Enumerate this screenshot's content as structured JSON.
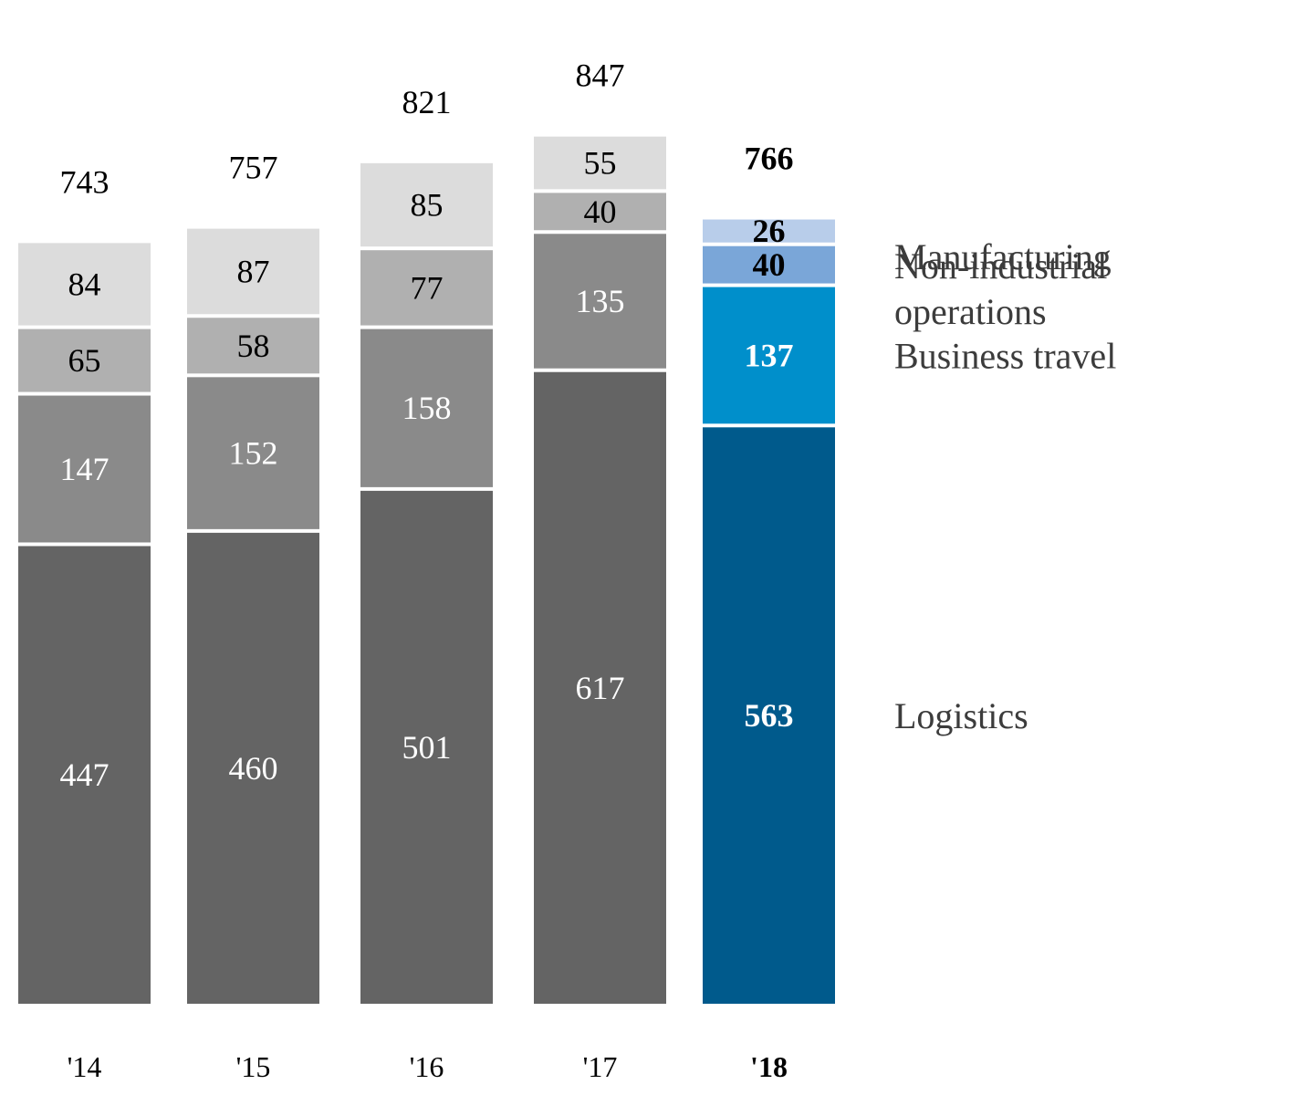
{
  "chart_data": {
    "type": "bar",
    "stacked": true,
    "categories": [
      "'14",
      "'15",
      "'16",
      "'17",
      "'18"
    ],
    "highlight_category": "'18",
    "totals": [
      743,
      757,
      821,
      847,
      766
    ],
    "series": [
      {
        "name": "Logistics",
        "values": [
          447,
          460,
          501,
          617,
          563
        ],
        "color": "#646464",
        "highlight_color": "#005a8c",
        "label_color": "#ffffff"
      },
      {
        "name": "Business travel",
        "values": [
          147,
          152,
          158,
          135,
          137
        ],
        "color": "#8a8a8a",
        "highlight_color": "#008fcb",
        "label_color": "#ffffff"
      },
      {
        "name": "Non-industrial operations",
        "legend_lines": [
          "Non-industrial",
          "operations"
        ],
        "values": [
          65,
          58,
          77,
          40,
          40
        ],
        "color": "#b0b0b0",
        "highlight_color": "#7aa6d8",
        "label_color": "#000000"
      },
      {
        "name": "Manufacturing",
        "values": [
          84,
          87,
          85,
          55,
          26
        ],
        "color": "#dcdcdc",
        "highlight_color": "#b8cdea",
        "label_color": "#000000"
      }
    ],
    "legend_placement": "right",
    "grid": false,
    "ylim": [
      0,
      850
    ]
  }
}
